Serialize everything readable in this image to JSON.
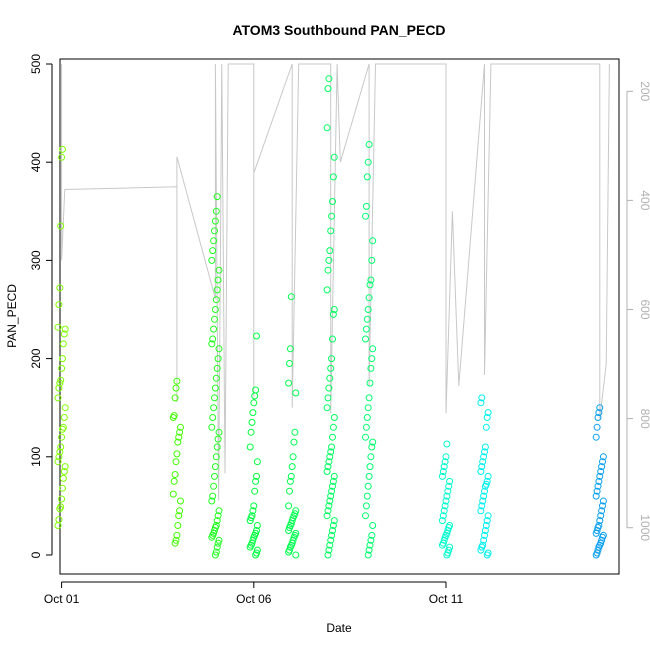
{
  "chart_data": {
    "type": "scatter",
    "title": "ATOM3 Southbound PAN_PECD",
    "xlabel": "Date",
    "ylabel": "PAN_PECD",
    "ylim": [
      0,
      500
    ],
    "yticks": [
      0,
      100,
      200,
      300,
      400,
      500
    ],
    "xlim": [
      "2017-09-30T23:00",
      "2017-10-15T12:00"
    ],
    "xticks": [
      {
        "date": "2017-10-01",
        "label": "Oct 01"
      },
      {
        "date": "2017-10-06",
        "label": "Oct 06"
      },
      {
        "date": "2017-10-11",
        "label": "Oct 11"
      }
    ],
    "secondary_axis": {
      "side": "right",
      "range": [
        150,
        1050
      ],
      "inverted": true,
      "ticks": [
        200,
        400,
        600,
        800,
        1000
      ],
      "color": "#b0b0b0"
    },
    "point_style": "open circle",
    "grid": false,
    "legend": "none",
    "series": [
      {
        "date": "2017-10-01T00:00",
        "color": "#80ff00",
        "values": [
          30,
          36,
          47,
          49,
          57,
          68,
          78,
          85,
          90,
          95,
          100,
          105,
          110,
          120,
          128,
          130,
          140,
          150,
          160,
          170,
          175,
          178,
          190,
          200,
          215,
          225,
          230,
          232,
          255,
          272,
          335,
          405,
          413
        ]
      },
      {
        "date": "2017-10-04T00:00",
        "color": "#40ff00",
        "values": [
          12,
          15,
          20,
          30,
          40,
          45,
          55,
          62,
          75,
          82,
          95,
          103,
          115,
          120,
          125,
          130,
          140,
          142,
          160,
          170,
          177
        ]
      },
      {
        "date": "2017-10-05T00:00",
        "color": "#20ff20",
        "values": [
          0,
          3,
          8,
          12,
          15,
          18,
          20,
          22,
          25,
          28,
          30,
          35,
          40,
          45,
          55,
          60,
          70,
          80,
          90,
          100,
          110,
          118,
          125,
          130,
          140,
          150,
          160,
          170,
          180,
          190,
          200,
          210,
          215,
          220,
          230,
          240,
          250,
          260,
          270,
          280,
          290,
          300,
          310,
          320,
          330,
          340,
          350,
          365
        ]
      },
      {
        "date": "2017-10-06T00:00",
        "color": "#00ff40",
        "values": [
          0,
          2,
          5,
          8,
          10,
          12,
          15,
          18,
          20,
          22,
          25,
          30,
          35,
          38,
          40,
          45,
          50,
          65,
          75,
          80,
          95,
          110,
          125,
          135,
          145,
          155,
          162,
          168,
          223
        ]
      },
      {
        "date": "2017-10-07T00:00",
        "color": "#00ff50",
        "values": [
          0,
          3,
          5,
          8,
          10,
          12,
          15,
          18,
          20,
          22,
          25,
          28,
          30,
          32,
          35,
          38,
          40,
          42,
          45,
          50,
          65,
          75,
          80,
          90,
          100,
          115,
          125,
          165,
          175,
          195,
          210,
          263
        ]
      },
      {
        "date": "2017-10-08T00:00",
        "color": "#00ff60",
        "values": [
          0,
          5,
          10,
          15,
          20,
          25,
          30,
          35,
          40,
          45,
          50,
          55,
          60,
          65,
          70,
          75,
          80,
          85,
          90,
          95,
          100,
          105,
          110,
          120,
          130,
          140,
          150,
          160,
          170,
          180,
          190,
          200,
          220,
          245,
          250,
          270,
          290,
          300,
          310,
          330,
          345,
          360,
          385,
          405,
          435,
          475,
          485
        ]
      },
      {
        "date": "2017-10-09T00:00",
        "color": "#00ff70",
        "values": [
          0,
          5,
          10,
          15,
          20,
          30,
          40,
          50,
          60,
          70,
          80,
          90,
          100,
          110,
          115,
          120,
          130,
          140,
          150,
          160,
          175,
          190,
          200,
          210,
          220,
          230,
          240,
          250,
          262,
          275,
          280,
          300,
          320,
          345,
          355,
          385,
          400,
          418
        ]
      },
      {
        "date": "2017-10-11T00:00",
        "color": "#00ffd0",
        "values": [
          0,
          2,
          5,
          8,
          10,
          12,
          15,
          18,
          20,
          22,
          25,
          28,
          30,
          35,
          40,
          45,
          50,
          55,
          60,
          65,
          70,
          75,
          80,
          85,
          90,
          95,
          100,
          113
        ]
      },
      {
        "date": "2017-10-12T00:00",
        "color": "#00f0f0",
        "values": [
          0,
          2,
          5,
          8,
          10,
          15,
          20,
          25,
          30,
          35,
          40,
          45,
          50,
          55,
          60,
          65,
          70,
          72,
          75,
          80,
          85,
          90,
          95,
          100,
          105,
          110,
          130,
          140,
          145,
          155,
          160
        ]
      },
      {
        "date": "2017-10-15T00:00",
        "color": "#0aa0f0",
        "values": [
          0,
          2,
          5,
          8,
          10,
          12,
          15,
          18,
          20,
          22,
          25,
          28,
          30,
          35,
          40,
          45,
          50,
          55,
          60,
          65,
          70,
          75,
          80,
          85,
          90,
          95,
          100,
          120,
          130,
          140,
          145,
          150
        ]
      }
    ],
    "pressure_trace": {
      "color": "#c8c8c8",
      "points": [
        [
          "2017-10-01T00:00",
          150
        ],
        [
          "2017-10-01T00:00",
          510
        ],
        [
          "2017-10-01T02:00",
          380
        ],
        [
          "2017-10-04T00:00",
          375
        ],
        [
          "2017-10-04T00:00",
          770
        ],
        [
          "2017-10-04T00:00",
          490
        ],
        [
          "2017-10-04T00:00",
          320
        ],
        [
          "2017-10-05T00:00",
          580
        ],
        [
          "2017-10-05T00:00",
          150
        ],
        [
          "2017-10-05T02:00",
          950
        ],
        [
          "2017-10-05T04:00",
          150
        ],
        [
          "2017-10-05T06:00",
          900
        ],
        [
          "2017-10-05T08:00",
          150
        ],
        [
          "2017-10-06T00:00",
          150
        ],
        [
          "2017-10-06T00:00",
          760
        ],
        [
          "2017-10-06T00:00",
          350
        ],
        [
          "2017-10-07T00:00",
          150
        ],
        [
          "2017-10-07T00:00",
          780
        ],
        [
          "2017-10-07T04:00",
          150
        ],
        [
          "2017-10-08T00:00",
          150
        ],
        [
          "2017-10-08T00:00",
          790
        ],
        [
          "2017-10-08T04:00",
          150
        ],
        [
          "2017-10-08T06:00",
          330
        ],
        [
          "2017-10-09T00:00",
          150
        ],
        [
          "2017-10-09T00:00",
          740
        ],
        [
          "2017-10-09T04:00",
          150
        ],
        [
          "2017-10-11T00:00",
          150
        ],
        [
          "2017-10-11T00:00",
          790
        ],
        [
          "2017-10-11T04:00",
          420
        ],
        [
          "2017-10-11T08:00",
          740
        ],
        [
          "2017-10-12T00:00",
          150
        ],
        [
          "2017-10-12T00:00",
          720
        ],
        [
          "2017-10-12T04:00",
          150
        ],
        [
          "2017-10-15T00:00",
          150
        ],
        [
          "2017-10-15T00:00",
          800
        ],
        [
          "2017-10-15T04:00",
          700
        ],
        [
          "2017-10-15T06:00",
          150
        ]
      ]
    }
  }
}
